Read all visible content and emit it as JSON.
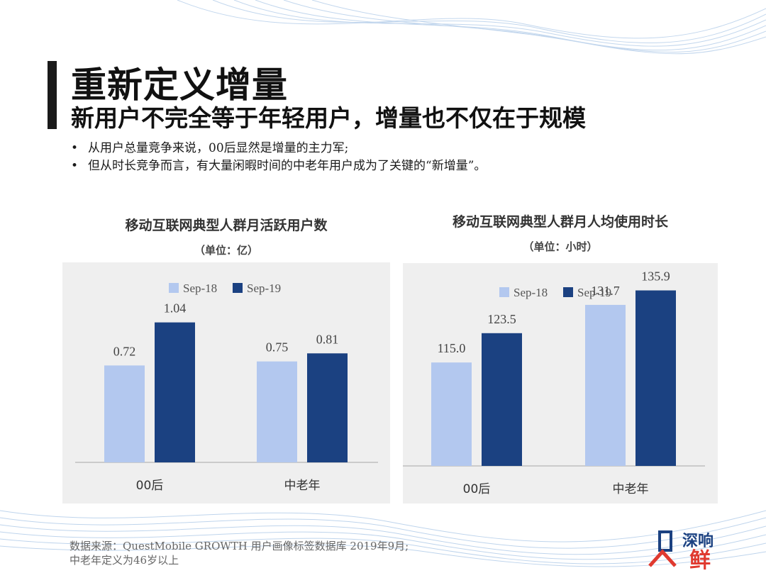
{
  "slide": {
    "title": "重新定义增量",
    "subtitle": "新用户不完全等于年轻用户，增量也不仅在于规模",
    "bullets": [
      "从用户总量竞争来说，00后显然是增量的主力军;",
      "但从时长竞争而言，有大量闲暇时间的中老年用户成为了关键的“新增量”。"
    ],
    "source_lines": [
      "数据来源：QuestMobile GROWTH 用户画像标签数据库 2019年9月;",
      "中老年定义为46岁以上"
    ],
    "logo": {
      "text_top": "深响",
      "text_bottom": "鲜"
    }
  },
  "colors": {
    "series_light": "#b3c8ef",
    "series_dark": "#1b4181",
    "panel_bg": "#efefef",
    "axis": "#bfbfbf"
  },
  "chart_data": [
    {
      "type": "bar",
      "title": "移动互联网典型人群月活跃用户数",
      "unit_label": "（单位：亿）",
      "categories": [
        "00后",
        "中老年"
      ],
      "series": [
        {
          "name": "Sep-18",
          "values": [
            0.72,
            0.75
          ],
          "labels": [
            "0.72",
            "0.75"
          ]
        },
        {
          "name": "Sep-19",
          "values": [
            1.04,
            0.81
          ],
          "labels": [
            "1.04",
            "0.81"
          ]
        }
      ],
      "ylim": [
        0,
        1.37
      ],
      "grid": false,
      "legend": "top-center"
    },
    {
      "type": "bar",
      "title": "移动互联网典型人群月人均使用时长",
      "unit_label": "（单位：小时）",
      "categories": [
        "00后",
        "中老年"
      ],
      "series": [
        {
          "name": "Sep-18",
          "values": [
            115.0,
            131.7
          ],
          "labels": [
            "115.0",
            "131.7"
          ]
        },
        {
          "name": "Sep-19",
          "values": [
            123.5,
            135.9
          ],
          "labels": [
            "123.5",
            "135.9"
          ]
        }
      ],
      "ylim": [
        85,
        143
      ],
      "grid": false,
      "legend": "top-center"
    }
  ]
}
